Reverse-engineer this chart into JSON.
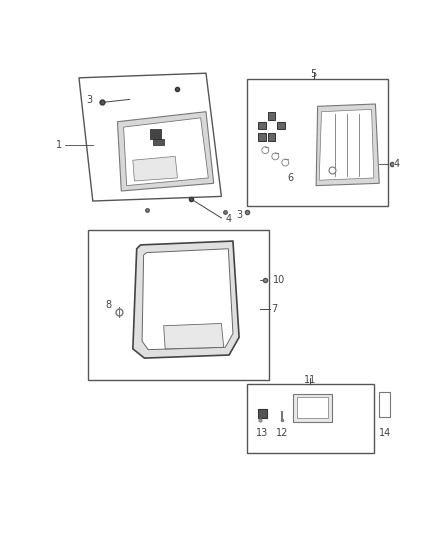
{
  "bg_color": "#ffffff",
  "fig_width": 4.38,
  "fig_height": 5.33,
  "dpi": 100,
  "lc": "#444444",
  "pc": "#777777",
  "bc": "#555555"
}
